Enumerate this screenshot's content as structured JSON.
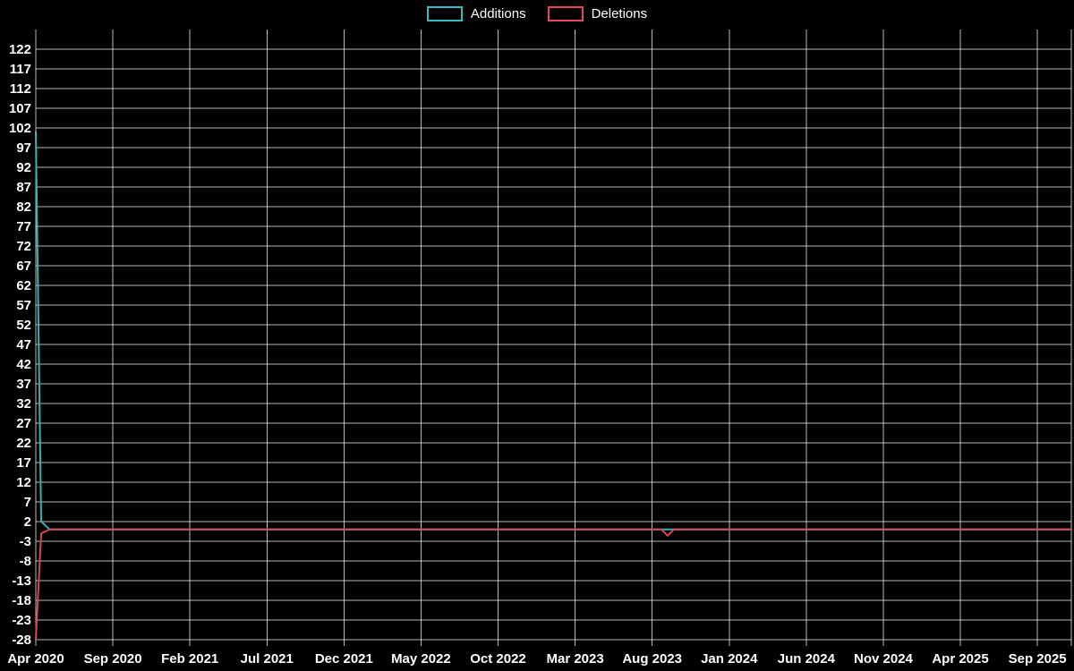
{
  "legend": {
    "items": [
      {
        "label": "Additions",
        "color": "#35bdbd"
      },
      {
        "label": "Deletions",
        "color": "#e3485c"
      }
    ]
  },
  "chart_data": {
    "type": "line",
    "title": "",
    "xlabel": "",
    "ylabel": "",
    "background": "#000000",
    "grid": true,
    "grid_color": "rgba(255,255,255,0.72)",
    "text_color": "#ffffff",
    "legend_position": "top-center",
    "x_axis": {
      "unit": "months-since-apr-2020",
      "range": [
        0,
        67.2
      ],
      "ticks": [
        {
          "pos": 0,
          "label": "Apr 2020"
        },
        {
          "pos": 5,
          "label": "Sep 2020"
        },
        {
          "pos": 10,
          "label": "Feb 2021"
        },
        {
          "pos": 15,
          "label": "Jul 2021"
        },
        {
          "pos": 20,
          "label": "Dec 2021"
        },
        {
          "pos": 25,
          "label": "May 2022"
        },
        {
          "pos": 30,
          "label": "Oct 2022"
        },
        {
          "pos": 35,
          "label": "Mar 2023"
        },
        {
          "pos": 40,
          "label": "Aug 2023"
        },
        {
          "pos": 45,
          "label": "Jan 2024"
        },
        {
          "pos": 50,
          "label": "Jun 2024"
        },
        {
          "pos": 55,
          "label": "Nov 2024"
        },
        {
          "pos": 60,
          "label": "Apr 2025"
        },
        {
          "pos": 65,
          "label": "Sep 2025"
        }
      ]
    },
    "y_axis": {
      "range": [
        -29.6,
        127
      ],
      "tick_step": 5,
      "ticks": [
        122,
        117,
        112,
        107,
        102,
        97,
        92,
        87,
        82,
        77,
        72,
        67,
        62,
        57,
        52,
        47,
        42,
        37,
        32,
        27,
        22,
        17,
        12,
        7,
        2,
        -3,
        -8,
        -13,
        -18,
        -23,
        -28
      ]
    },
    "series": [
      {
        "name": "Additions",
        "color": "#35bdbd",
        "points": [
          [
            0,
            101
          ],
          [
            0.35,
            2
          ],
          [
            0.9,
            0
          ],
          [
            67.2,
            0
          ]
        ]
      },
      {
        "name": "Deletions",
        "color": "#e3485c",
        "points": [
          [
            0,
            -28
          ],
          [
            0.35,
            -1
          ],
          [
            0.9,
            0
          ],
          [
            40.6,
            0
          ],
          [
            41,
            -1.6
          ],
          [
            41.4,
            0
          ],
          [
            67.2,
            0
          ]
        ]
      }
    ]
  }
}
